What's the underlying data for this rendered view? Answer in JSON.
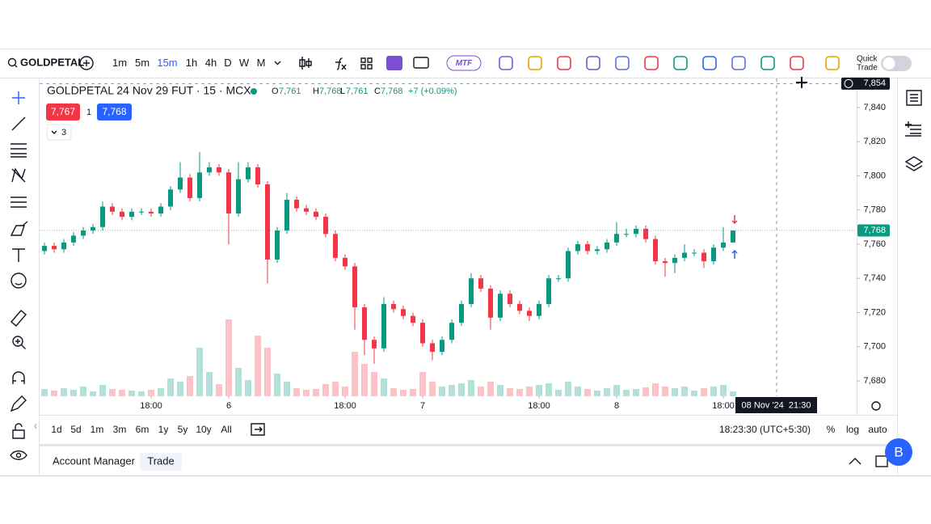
{
  "toolbar": {
    "symbol": "GOLDPETAL",
    "intervals": [
      "1m",
      "5m",
      "15m",
      "1h",
      "4h",
      "D",
      "W",
      "M"
    ],
    "active_interval": 2,
    "mtf": "MTF",
    "quick_trade": [
      "Quick",
      "Trade"
    ]
  },
  "legend": {
    "title": "GOLDPETAL 24 Nov 29 FUT · 15 · MCX",
    "o_label": "O",
    "o": "7,761",
    "h_label": "H",
    "h": "7,768",
    "l_label": "L",
    "l": "7,761",
    "c_label": "C",
    "c": "7,768",
    "change": "+7 (+0.09%)",
    "sell": "7,767",
    "qty": "1",
    "buy": "7,768",
    "indicators": "3"
  },
  "chart_data": {
    "type": "candlestick",
    "up_color": "#089981",
    "down_color": "#f23645",
    "candles": [
      [
        7756,
        7761,
        7754,
        7759,
        9
      ],
      [
        7759,
        7761,
        7755,
        7757,
        7
      ],
      [
        7757,
        7763,
        7755,
        7761,
        10
      ],
      [
        7761,
        7767,
        7759,
        7765,
        8
      ],
      [
        7765,
        7770,
        7763,
        7768,
        12
      ],
      [
        7768,
        7772,
        7766,
        7770,
        6
      ],
      [
        7770,
        7785,
        7768,
        7782,
        14
      ],
      [
        7782,
        7784,
        7777,
        7779,
        9
      ],
      [
        7779,
        7781,
        7774,
        7776,
        8
      ],
      [
        7776,
        7781,
        7774,
        7779,
        7
      ],
      [
        7779,
        7781,
        7777,
        7779,
        6
      ],
      [
        7779,
        7781,
        7776,
        7778,
        8
      ],
      [
        7778,
        7784,
        7776,
        7782,
        10
      ],
      [
        7782,
        7794,
        7780,
        7792,
        22
      ],
      [
        7792,
        7808,
        7790,
        7799,
        18
      ],
      [
        7799,
        7801,
        7785,
        7787,
        25
      ],
      [
        7787,
        7814,
        7785,
        7802,
        60
      ],
      [
        7802,
        7808,
        7800,
        7805,
        30
      ],
      [
        7805,
        7807,
        7800,
        7802,
        15
      ],
      [
        7802,
        7804,
        7760,
        7778,
        95
      ],
      [
        7778,
        7808,
        7776,
        7798,
        35
      ],
      [
        7798,
        7808,
        7796,
        7805,
        20
      ],
      [
        7805,
        7807,
        7793,
        7795,
        75
      ],
      [
        7795,
        7797,
        7737,
        7751,
        60
      ],
      [
        7751,
        7770,
        7749,
        7768,
        28
      ],
      [
        7768,
        7790,
        7766,
        7786,
        18
      ],
      [
        7786,
        7788,
        7779,
        7781,
        10
      ],
      [
        7781,
        7783,
        7777,
        7779,
        8
      ],
      [
        7779,
        7781,
        7774,
        7776,
        9
      ],
      [
        7776,
        7778,
        7764,
        7766,
        15
      ],
      [
        7766,
        7768,
        7750,
        7752,
        18
      ],
      [
        7752,
        7754,
        7745,
        7747,
        12
      ],
      [
        7747,
        7749,
        7710,
        7723,
        55
      ],
      [
        7723,
        7725,
        7695,
        7704,
        40
      ],
      [
        7704,
        7706,
        7690,
        7699,
        30
      ],
      [
        7699,
        7729,
        7697,
        7725,
        22
      ],
      [
        7725,
        7727,
        7720,
        7722,
        10
      ],
      [
        7722,
        7724,
        7716,
        7718,
        8
      ],
      [
        7718,
        7720,
        7712,
        7714,
        9
      ],
      [
        7714,
        7716,
        7700,
        7702,
        30
      ],
      [
        7702,
        7704,
        7692,
        7697,
        18
      ],
      [
        7697,
        7706,
        7695,
        7704,
        12
      ],
      [
        7704,
        7716,
        7702,
        7714,
        14
      ],
      [
        7714,
        7727,
        7712,
        7725,
        16
      ],
      [
        7725,
        7743,
        7723,
        7740,
        20
      ],
      [
        7740,
        7742,
        7732,
        7734,
        12
      ],
      [
        7734,
        7736,
        7710,
        7717,
        18
      ],
      [
        7717,
        7733,
        7715,
        7731,
        14
      ],
      [
        7731,
        7733,
        7723,
        7725,
        10
      ],
      [
        7725,
        7727,
        7719,
        7721,
        9
      ],
      [
        7721,
        7723,
        7715,
        7718,
        12
      ],
      [
        7718,
        7727,
        7716,
        7725,
        14
      ],
      [
        7725,
        7742,
        7723,
        7740,
        16
      ],
      [
        7740,
        7742,
        7738,
        7740,
        8
      ],
      [
        7740,
        7758,
        7738,
        7756,
        18
      ],
      [
        7756,
        7762,
        7754,
        7760,
        12
      ],
      [
        7760,
        7762,
        7754,
        7756,
        9
      ],
      [
        7756,
        7759,
        7754,
        7757,
        7
      ],
      [
        7757,
        7763,
        7755,
        7761,
        10
      ],
      [
        7761,
        7773,
        7759,
        7766,
        14
      ],
      [
        7766,
        7769,
        7764,
        7766,
        8
      ],
      [
        7766,
        7771,
        7764,
        7769,
        9
      ],
      [
        7769,
        7771,
        7761,
        7763,
        11
      ],
      [
        7763,
        7765,
        7748,
        7750,
        16
      ],
      [
        7750,
        7752,
        7741,
        7749,
        12
      ],
      [
        7749,
        7754,
        7743,
        7752,
        10
      ],
      [
        7752,
        7760,
        7750,
        7755,
        12
      ],
      [
        7755,
        7757,
        7753,
        7755,
        7
      ],
      [
        7755,
        7757,
        7746,
        7750,
        10
      ],
      [
        7750,
        7760,
        7748,
        7758,
        12
      ],
      [
        7758,
        7770,
        7756,
        7761,
        14
      ],
      [
        7761,
        7768,
        7761,
        7768,
        6
      ]
    ],
    "xlim": [
      -0.5,
      83.75
    ],
    "xticks": [
      {
        "value": 11,
        "label": "18:00"
      },
      {
        "value": 19,
        "label": "6"
      },
      {
        "value": 31,
        "label": "18:00"
      },
      {
        "value": 39,
        "label": "7"
      },
      {
        "value": 51,
        "label": "18:00"
      },
      {
        "value": 59,
        "label": "8"
      },
      {
        "value": 70,
        "label": "18:00"
      }
    ],
    "ylim": [
      7671,
      7857
    ],
    "yticks": [
      {
        "value": 7680,
        "label": "7,680"
      },
      {
        "value": 7700,
        "label": "7,700"
      },
      {
        "value": 7720,
        "label": "7,720"
      },
      {
        "value": 7740,
        "label": "7,740"
      },
      {
        "value": 7760,
        "label": "7,760"
      },
      {
        "value": 7780,
        "label": "7,780"
      },
      {
        "value": 7800,
        "label": "7,800"
      },
      {
        "value": 7820,
        "label": "7,820"
      },
      {
        "value": 7840,
        "label": "7,840"
      }
    ],
    "volume_lim": [
      0,
      100
    ],
    "last_price": {
      "value": 7768,
      "label": "7,768"
    },
    "crosshair": {
      "index": 75.5,
      "price": {
        "value": 7854,
        "label": "7,854"
      },
      "time_label": "08 Nov '24  21:30"
    }
  },
  "bottom_bar": {
    "ranges": [
      "1d",
      "5d",
      "1m",
      "3m",
      "6m",
      "1y",
      "5y",
      "10y",
      "All"
    ],
    "time": "18:23:30 (UTC+5:30)",
    "percent": "%",
    "log": "log",
    "auto": "auto"
  },
  "panel": {
    "tabs": [
      "Account Manager",
      "Trade"
    ],
    "avatar": "B"
  }
}
